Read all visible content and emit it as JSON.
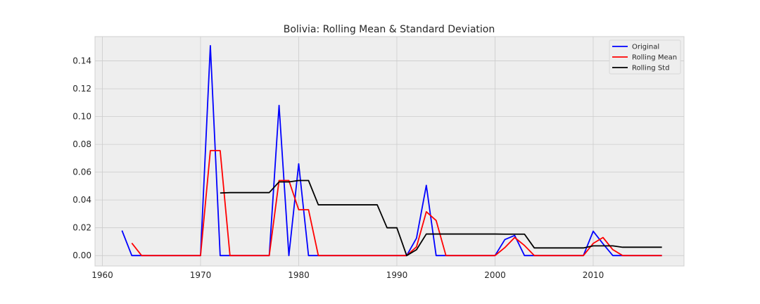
{
  "chart_data": {
    "type": "line",
    "title": "Bolivia: Rolling Mean & Standard Deviation",
    "xlabel": "",
    "ylabel": "",
    "xlim": [
      1959.25,
      2019.25
    ],
    "ylim": [
      -0.0075,
      0.1575
    ],
    "x_ticks": [
      1960,
      1970,
      1980,
      1990,
      2000,
      2010
    ],
    "y_ticks": [
      0.0,
      0.02,
      0.04,
      0.06,
      0.08,
      0.1,
      0.12,
      0.14
    ],
    "y_tick_labels": [
      "0.00",
      "0.02",
      "0.04",
      "0.06",
      "0.08",
      "0.10",
      "0.12",
      "0.14"
    ],
    "grid": true,
    "legend_position": "top-right",
    "colors": {
      "background": "#eeeeee",
      "grid": "#cccccc"
    },
    "series": [
      {
        "name": "Original",
        "color": "#0000ff",
        "x": [
          1962,
          1963,
          1964,
          1965,
          1966,
          1967,
          1968,
          1969,
          1970,
          1971,
          1972,
          1973,
          1974,
          1975,
          1976,
          1977,
          1978,
          1979,
          1980,
          1981,
          1982,
          1983,
          1984,
          1985,
          1986,
          1987,
          1988,
          1989,
          1990,
          1991,
          1992,
          1993,
          1994,
          1995,
          1996,
          1997,
          1998,
          1999,
          2000,
          2001,
          2002,
          2003,
          2004,
          2005,
          2006,
          2007,
          2008,
          2009,
          2010,
          2011,
          2012,
          2013,
          2014,
          2015,
          2016,
          2017
        ],
        "y": [
          0.018,
          0.0,
          0.0,
          0.0,
          0.0,
          0.0,
          0.0,
          0.0,
          0.0,
          0.151,
          0.0,
          0.0,
          0.0,
          0.0,
          0.0,
          0.0,
          0.108,
          0.0,
          0.066,
          0.0,
          0.0,
          0.0,
          0.0,
          0.0,
          0.0,
          0.0,
          0.0,
          0.0,
          0.0,
          0.0,
          0.0125,
          0.0505,
          0.0,
          0.0,
          0.0,
          0.0,
          0.0,
          0.0,
          0.0,
          0.0115,
          0.0145,
          0.0,
          0.0,
          0.0,
          0.0,
          0.0,
          0.0,
          0.0,
          0.0175,
          0.0085,
          0.0,
          0.0,
          0.0,
          0.0,
          0.0,
          0.0
        ]
      },
      {
        "name": "Rolling Mean",
        "color": "#ff0000",
        "x": [
          1963,
          1964,
          1965,
          1966,
          1967,
          1968,
          1969,
          1970,
          1971,
          1972,
          1973,
          1974,
          1975,
          1976,
          1977,
          1978,
          1979,
          1980,
          1981,
          1982,
          1983,
          1984,
          1985,
          1986,
          1987,
          1988,
          1989,
          1990,
          1991,
          1992,
          1993,
          1994,
          1995,
          1996,
          1997,
          1998,
          1999,
          2000,
          2001,
          2002,
          2003,
          2004,
          2005,
          2006,
          2007,
          2008,
          2009,
          2010,
          2011,
          2012,
          2013,
          2014,
          2015,
          2016,
          2017
        ],
        "y": [
          0.009,
          0.0,
          0.0,
          0.0,
          0.0,
          0.0,
          0.0,
          0.0,
          0.0755,
          0.0755,
          0.0,
          0.0,
          0.0,
          0.0,
          0.0,
          0.054,
          0.054,
          0.033,
          0.033,
          0.0,
          0.0,
          0.0,
          0.0,
          0.0,
          0.0,
          0.0,
          0.0,
          0.0,
          0.0,
          0.00625,
          0.0315,
          0.02525,
          0.0,
          0.0,
          0.0,
          0.0,
          0.0,
          0.0,
          0.00575,
          0.013,
          0.00725,
          0.0,
          0.0,
          0.0,
          0.0,
          0.0,
          0.0,
          0.00875,
          0.013,
          0.00425,
          0.0,
          0.0,
          0.0,
          0.0,
          0.0
        ]
      },
      {
        "name": "Rolling Std",
        "color": "#000000",
        "x": [
          1972,
          1973,
          1974,
          1975,
          1976,
          1977,
          1978,
          1979,
          1980,
          1981,
          1982,
          1983,
          1984,
          1985,
          1986,
          1987,
          1988,
          1989,
          1990,
          1991,
          1992,
          1993,
          1994,
          1995,
          1996,
          1997,
          1998,
          1999,
          2000,
          2001,
          2002,
          2003,
          2004,
          2005,
          2006,
          2007,
          2008,
          2009,
          2010,
          2011,
          2012,
          2013,
          2014,
          2015,
          2016,
          2017
        ],
        "y": [
          0.045,
          0.0453,
          0.0453,
          0.0453,
          0.0453,
          0.0453,
          0.053,
          0.053,
          0.054,
          0.054,
          0.0365,
          0.0365,
          0.0365,
          0.0365,
          0.0365,
          0.0365,
          0.0365,
          0.02,
          0.02,
          0.0,
          0.0042,
          0.0155,
          0.0155,
          0.0155,
          0.0155,
          0.0155,
          0.0155,
          0.0155,
          0.0155,
          0.0154,
          0.0154,
          0.0154,
          0.0055,
          0.0055,
          0.0055,
          0.0055,
          0.0055,
          0.0055,
          0.007,
          0.007,
          0.007,
          0.006,
          0.006,
          0.006,
          0.006,
          0.006
        ]
      }
    ]
  }
}
